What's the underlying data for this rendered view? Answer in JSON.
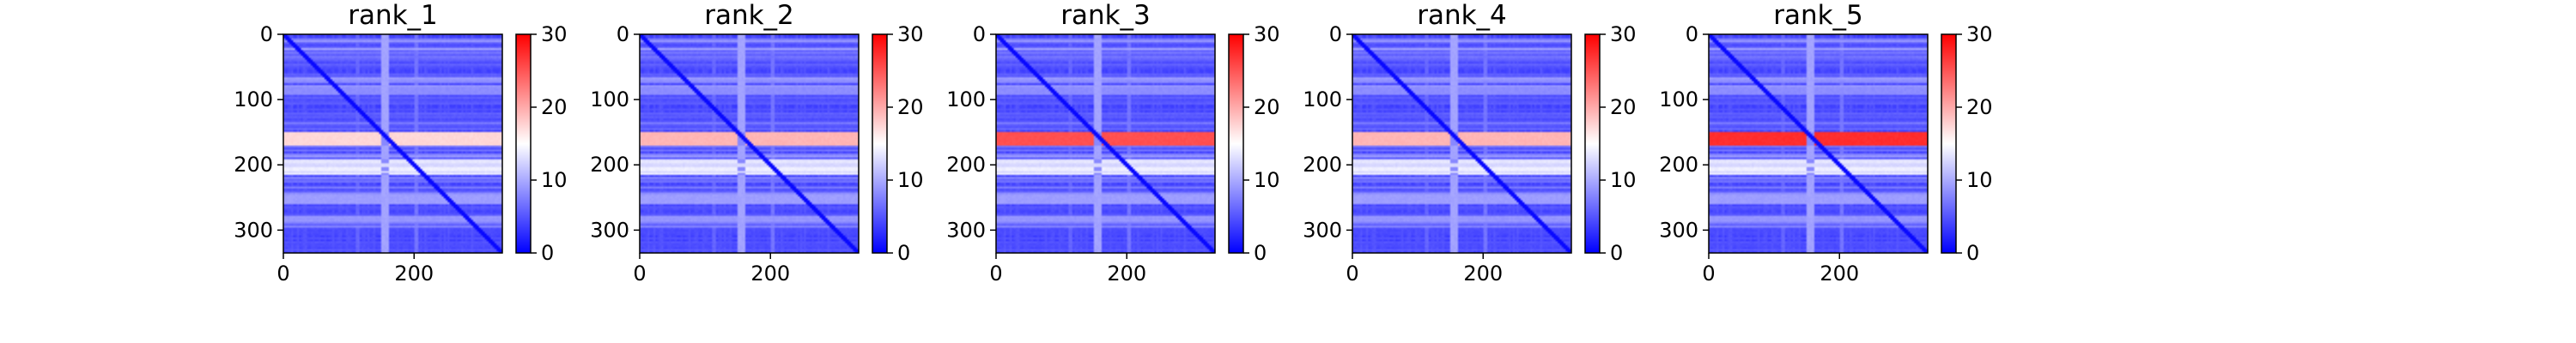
{
  "chart_data": {
    "type": "heatmap",
    "shared": {
      "xlim": [
        0,
        335
      ],
      "ylim": [
        335,
        0
      ],
      "x_ticks": [
        0,
        200
      ],
      "y_ticks": [
        0,
        100,
        200,
        300
      ],
      "colorbar": {
        "range": [
          0,
          30
        ],
        "ticks": [
          0,
          10,
          20,
          30
        ],
        "colors": [
          "#0000ff",
          "#ffffff",
          "#ff0000"
        ]
      },
      "matrix_size": 335
    },
    "panels": [
      {
        "title": "rank_1",
        "hot_band_max": 14
      },
      {
        "title": "rank_2",
        "hot_band_max": 16
      },
      {
        "title": "rank_3",
        "hot_band_max": 22
      },
      {
        "title": "rank_4",
        "hot_band_max": 16
      },
      {
        "title": "rank_5",
        "hot_band_max": 24
      }
    ]
  }
}
